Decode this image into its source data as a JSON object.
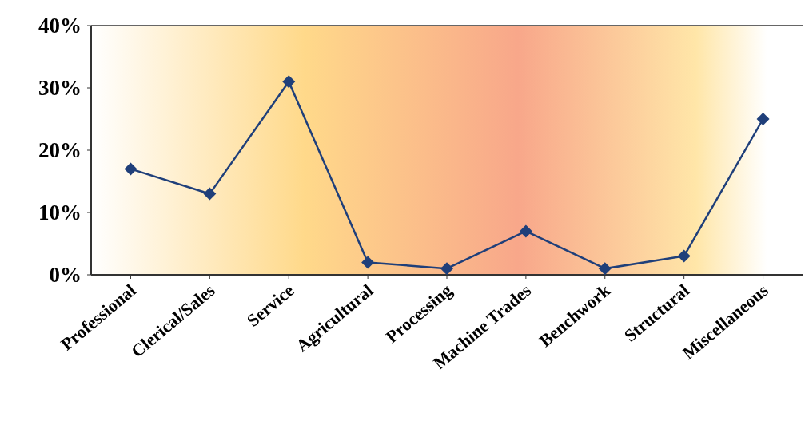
{
  "chart_data": {
    "type": "line",
    "categories": [
      "Professional",
      "Clerical/Sales",
      "Service",
      "Agricultural",
      "Processing",
      "Machine Trades",
      "Benchwork",
      "Structural",
      "Miscellaneous"
    ],
    "series": [
      {
        "color": "#1f3f7a",
        "values": [
          17,
          13,
          31,
          2,
          1,
          7,
          1,
          3,
          25
        ]
      }
    ],
    "ylim": [
      0,
      40
    ],
    "yticks": [
      {
        "value": 0,
        "label": "0%"
      },
      {
        "value": 10,
        "label": "10%"
      },
      {
        "value": 20,
        "label": "20%"
      },
      {
        "value": 30,
        "label": "30%"
      },
      {
        "value": 40,
        "label": "40%"
      }
    ],
    "marker": "diamond",
    "line_style": "solid"
  }
}
